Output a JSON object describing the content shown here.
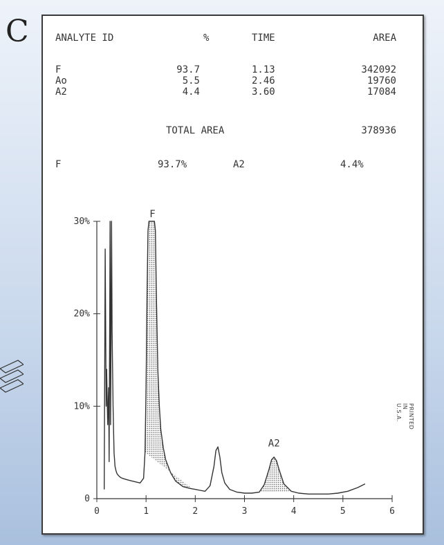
{
  "slide": {
    "letter": "C"
  },
  "report": {
    "headers": {
      "id": "ANALYTE ID",
      "pct": "%",
      "time": "TIME",
      "area": "AREA"
    },
    "rows": [
      {
        "id": "F",
        "pct": "93.7",
        "time": "1.13",
        "area": "342092"
      },
      {
        "id": "Ao",
        "pct": "5.5",
        "time": "2.46",
        "area": "19760"
      },
      {
        "id": "A2",
        "pct": "4.4",
        "time": "3.60",
        "area": "17084"
      }
    ],
    "total_label": "TOTAL AREA",
    "total_value": "378936",
    "summary": {
      "a": "F",
      "a_pct": "93.7%",
      "b": "A2",
      "b_pct": "4.4%"
    },
    "printed_mark": "PRINTED IN U.S.A."
  },
  "chart_data": {
    "type": "line",
    "xlabel": "",
    "ylabel": "",
    "xlim": [
      0,
      6
    ],
    "ylim": [
      0,
      30
    ],
    "x_ticks": [
      "0",
      "1",
      "2",
      "3",
      "4",
      "5",
      "6"
    ],
    "y_ticks": [
      "0",
      "10%",
      "20%",
      "30%"
    ],
    "y_tick_values": [
      0,
      10,
      20,
      30
    ],
    "peak_labels": [
      {
        "text": "F",
        "x": 1.13,
        "y": 30
      },
      {
        "text": "A2",
        "x": 3.6,
        "y": 5.2
      }
    ],
    "shaded_peaks": [
      [
        0.98,
        1.95
      ],
      [
        3.3,
        3.95
      ]
    ],
    "series": [
      {
        "x": [
          0.15,
          0.17,
          0.19,
          0.2,
          0.22,
          0.24,
          0.25,
          0.27,
          0.28,
          0.3,
          0.31,
          0.33,
          0.35,
          0.37,
          0.39,
          0.41,
          0.44,
          0.48,
          0.52,
          0.58,
          0.65,
          0.72,
          0.8,
          0.88,
          0.95,
          0.98,
          1.0,
          1.02,
          1.04,
          1.06,
          1.08,
          1.1,
          1.13,
          1.15,
          1.17,
          1.19,
          1.21,
          1.24,
          1.27,
          1.3,
          1.35,
          1.4,
          1.5,
          1.6,
          1.75,
          1.9,
          2.0,
          2.1,
          2.2,
          2.3,
          2.38,
          2.42,
          2.46,
          2.5,
          2.54,
          2.6,
          2.7,
          2.85,
          3.0,
          3.15,
          3.3,
          3.4,
          3.5,
          3.55,
          3.6,
          3.65,
          3.7,
          3.8,
          3.95,
          4.1,
          4.3,
          4.5,
          4.7,
          4.9,
          5.1,
          5.3,
          5.45
        ],
        "values": [
          1,
          27,
          10,
          14,
          8,
          12,
          4,
          30,
          8,
          30,
          18,
          10,
          5,
          3.5,
          3.0,
          2.7,
          2.5,
          2.3,
          2.2,
          2.1,
          2.0,
          1.9,
          1.8,
          1.7,
          2.2,
          5,
          12,
          22,
          29,
          30,
          30,
          30,
          30,
          30,
          30,
          29,
          22,
          14,
          10,
          7.5,
          5.5,
          4.2,
          2.8,
          1.9,
          1.3,
          1.1,
          1.0,
          0.9,
          0.8,
          1.4,
          3.5,
          5.2,
          5.6,
          4.5,
          2.8,
          1.7,
          1.0,
          0.7,
          0.6,
          0.6,
          0.7,
          1.5,
          3.2,
          4.2,
          4.5,
          4.1,
          3.2,
          1.6,
          0.8,
          0.6,
          0.5,
          0.5,
          0.5,
          0.6,
          0.8,
          1.2,
          1.6
        ]
      }
    ]
  }
}
